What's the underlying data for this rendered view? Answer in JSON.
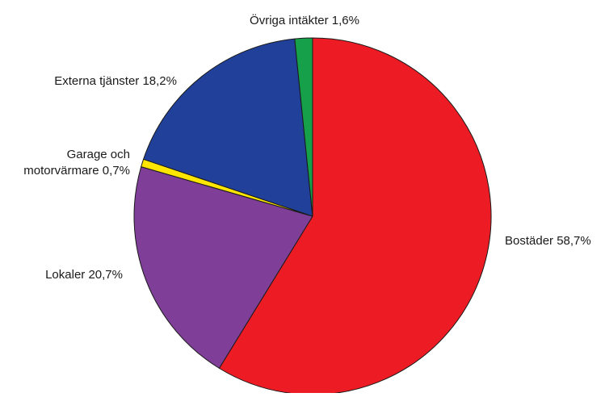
{
  "chart_data": {
    "type": "pie",
    "title": "",
    "start": "12 o'clock",
    "direction": "clockwise",
    "slices": [
      {
        "label_lines": [
          "Bostäder 58,7%"
        ],
        "name": "Bostäder",
        "value": 58.7,
        "color": "#ed1c24"
      },
      {
        "label_lines": [
          "Lokaler 20,7%"
        ],
        "name": "Lokaler",
        "value": 20.7,
        "color": "#7f3f98"
      },
      {
        "label_lines": [
          "Garage och",
          "motorvärmare 0,7%"
        ],
        "name": "Garage och motorvärmare",
        "value": 0.7,
        "color": "#ffe600"
      },
      {
        "label_lines": [
          "Externa tjänster 18,2%"
        ],
        "name": "Externa tjänster",
        "value": 18.2,
        "color": "#21409a"
      },
      {
        "label_lines": [
          "Övriga intäkter 1,6%"
        ],
        "name": "Övriga intäkter",
        "value": 1.6,
        "color": "#16a04a"
      }
    ],
    "legend": "none",
    "data_labels": "outside"
  }
}
